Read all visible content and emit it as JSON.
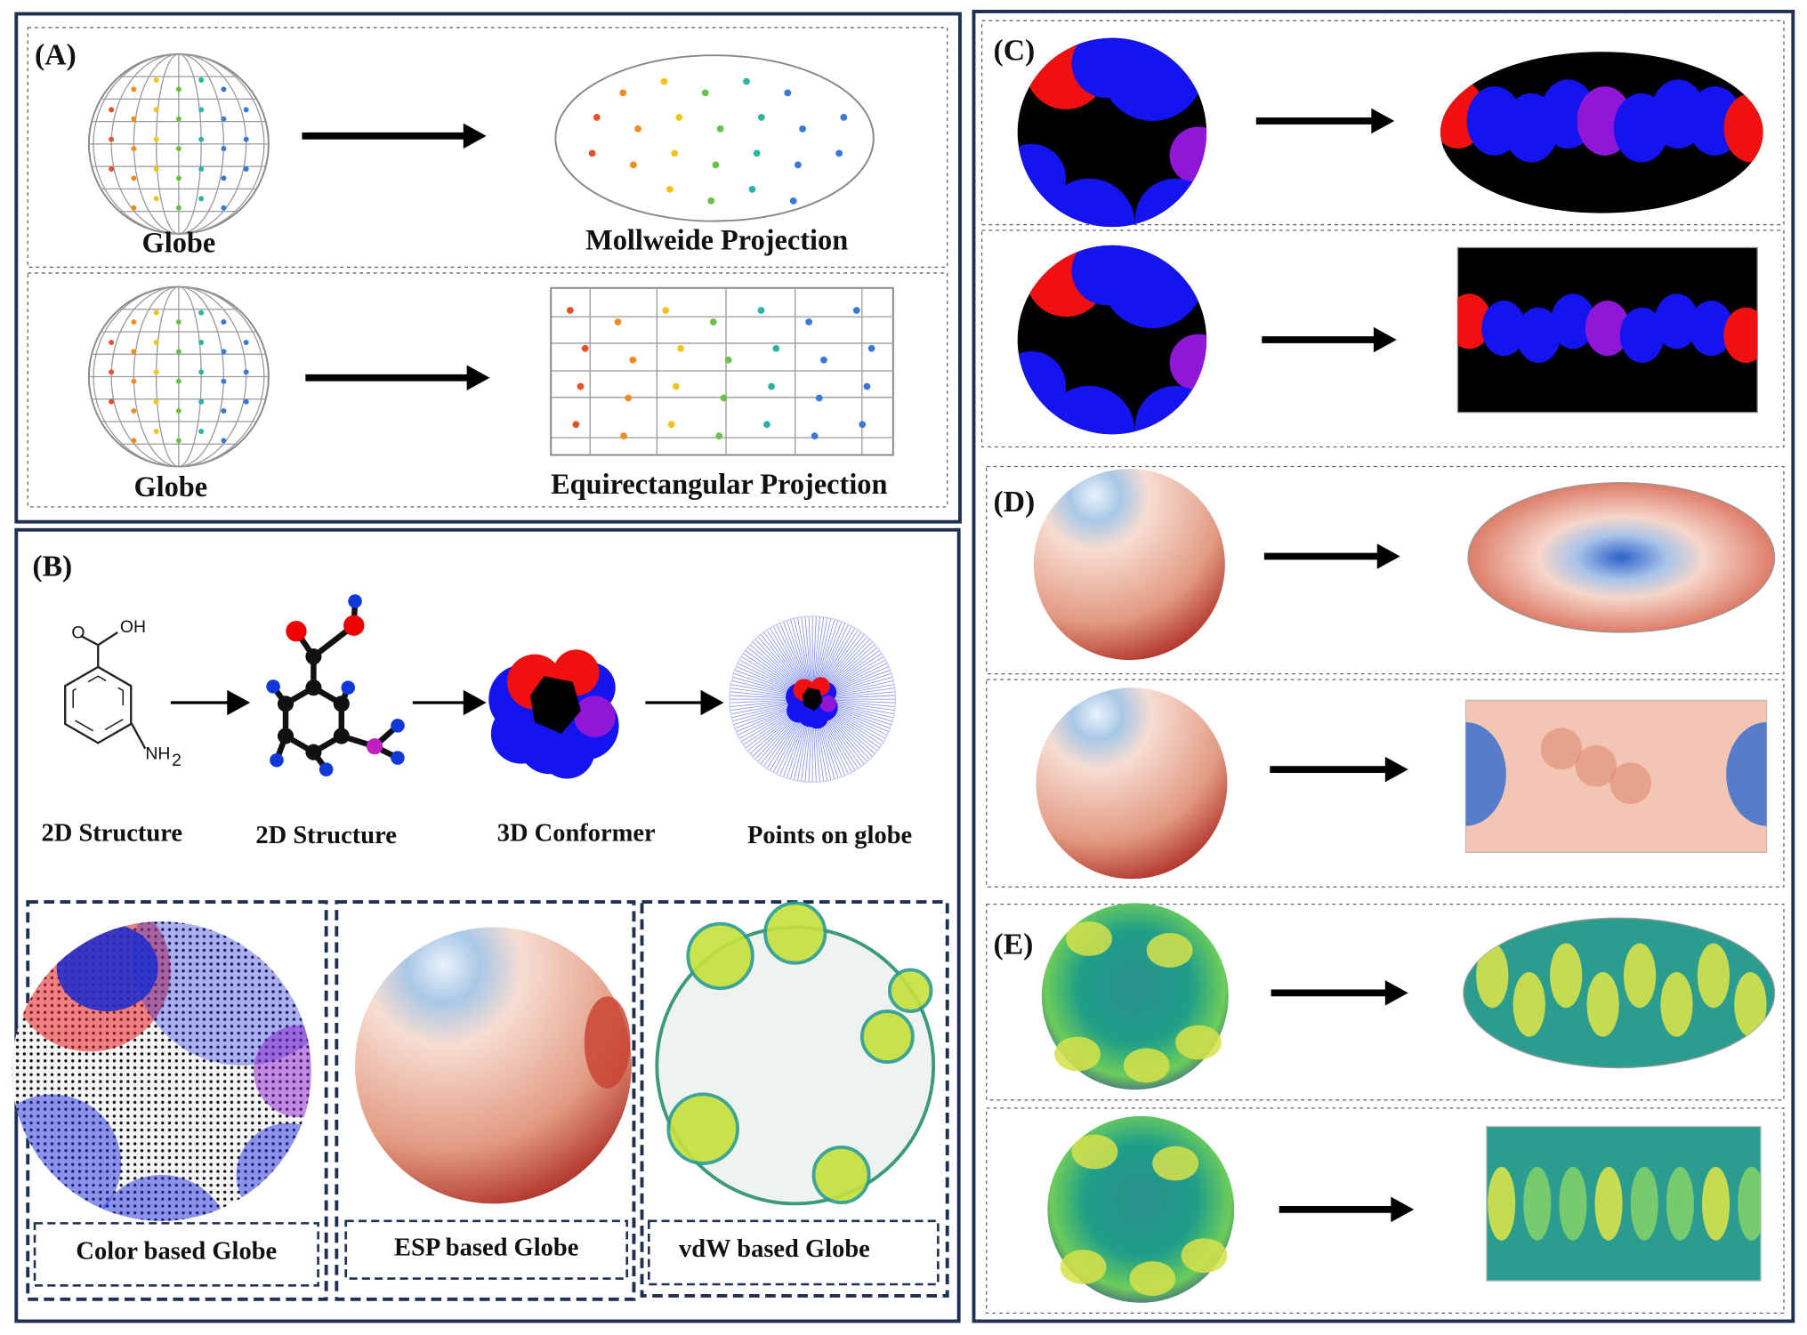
{
  "panel_a": {
    "label": "(A)",
    "top": {
      "left": "Globe",
      "right": "Mollweide Projection"
    },
    "bottom": {
      "left": "Globe",
      "right": "Equirectangular Projection"
    }
  },
  "panel_b": {
    "label": "(B)",
    "steps": [
      "2D Structure",
      "2D Structure",
      "3D Conformer",
      "Points on globe"
    ],
    "molecule": {
      "o": "O",
      "oh": "OH",
      "nh": "NH",
      "sub": "2"
    },
    "globes": [
      "Color based Globe",
      "ESP based Globe",
      "vdW based Globe"
    ]
  },
  "panel_c": {
    "label": "(C)"
  },
  "panel_d": {
    "label": "(D)"
  },
  "panel_e": {
    "label": "(E)"
  }
}
